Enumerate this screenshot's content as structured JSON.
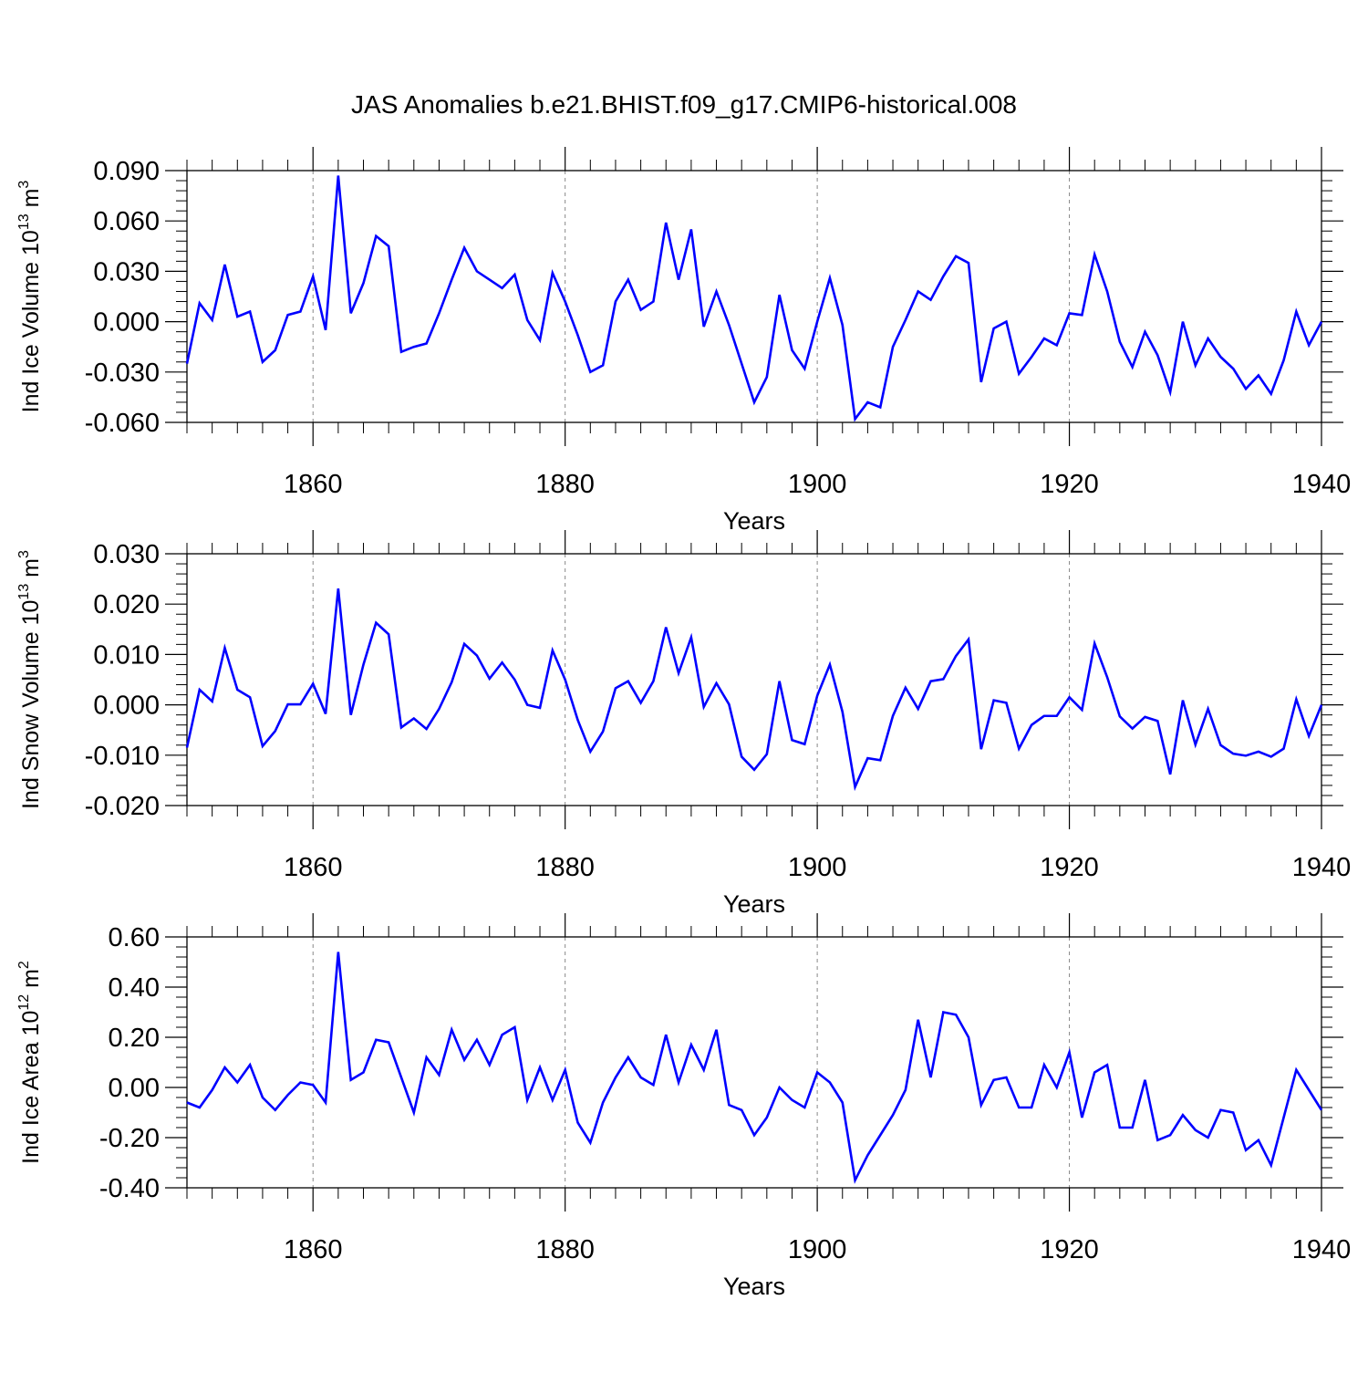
{
  "title": "JAS Anomalies b.e21.BHIST.f09_g17.CMIP6-historical.008",
  "colors": {
    "line": "#0000ff",
    "axis": "#000000",
    "grid": "#888888"
  },
  "chart_data": [
    {
      "type": "line",
      "ylabel": {
        "main": "Ind Ice Volume 10",
        "exp": "13",
        "unit": " m",
        "unit_exp": "3"
      },
      "xlabel": "Years",
      "xlim": [
        1850,
        1940
      ],
      "ylim": [
        -0.06,
        0.09
      ],
      "yticks": [
        -0.06,
        -0.03,
        0.0,
        0.03,
        0.06,
        0.09
      ],
      "ytick_labels": [
        "-0.060",
        "-0.030",
        "0.000",
        "0.030",
        "0.060",
        "0.090"
      ],
      "xticks": [
        1860,
        1880,
        1900,
        1920,
        1940
      ],
      "xtick_labels": [
        "1860",
        "1880",
        "1900",
        "1920",
        "1940"
      ],
      "grid_x": [
        1860,
        1880,
        1900,
        1920
      ],
      "x_start": 1850,
      "series": [
        {
          "values": [
            -0.025,
            0.011,
            0.001,
            0.034,
            0.003,
            0.006,
            -0.024,
            -0.017,
            0.004,
            0.006,
            0.027,
            -0.005,
            0.087,
            0.005,
            0.023,
            0.051,
            0.045,
            -0.018,
            -0.015,
            -0.013,
            0.005,
            0.025,
            0.044,
            0.03,
            0.025,
            0.02,
            0.028,
            0.001,
            -0.011,
            0.029,
            0.012,
            -0.008,
            -0.03,
            -0.026,
            0.012,
            0.025,
            0.007,
            0.012,
            0.059,
            0.025,
            0.055,
            -0.003,
            0.018,
            -0.002,
            -0.025,
            -0.048,
            -0.033,
            0.016,
            -0.017,
            -0.028,
            0.0,
            0.026,
            -0.002,
            -0.058,
            -0.048,
            -0.051,
            -0.015,
            0.001,
            0.018,
            0.013,
            0.027,
            0.039,
            0.035,
            -0.036,
            -0.004,
            0.0,
            -0.031,
            -0.021,
            -0.01,
            -0.014,
            0.005,
            0.004,
            0.04,
            0.018,
            -0.012,
            -0.027,
            -0.006,
            -0.02,
            -0.042,
            0.0,
            -0.026,
            -0.01,
            -0.021,
            -0.028,
            -0.04,
            -0.032,
            -0.043,
            -0.023,
            0.006,
            -0.014,
            0.0
          ]
        }
      ]
    },
    {
      "type": "line",
      "ylabel": {
        "main": "Ind Snow Volume 10",
        "exp": "13",
        "unit": " m",
        "unit_exp": "3"
      },
      "xlabel": "Years",
      "xlim": [
        1850,
        1940
      ],
      "ylim": [
        -0.02,
        0.03
      ],
      "yticks": [
        -0.02,
        -0.01,
        0.0,
        0.01,
        0.02,
        0.03
      ],
      "ytick_labels": [
        "-0.020",
        "-0.010",
        "0.000",
        "0.010",
        "0.020",
        "0.030"
      ],
      "xticks": [
        1860,
        1880,
        1900,
        1920,
        1940
      ],
      "xtick_labels": [
        "1860",
        "1880",
        "1900",
        "1920",
        "1940"
      ],
      "grid_x": [
        1860,
        1880,
        1900,
        1920
      ],
      "x_start": 1850,
      "series": [
        {
          "values": [
            -0.0085,
            0.003,
            0.0007,
            0.0113,
            0.003,
            0.0015,
            -0.0082,
            -0.0052,
            0.0001,
            0.0001,
            0.0042,
            -0.0018,
            0.0231,
            -0.002,
            0.008,
            0.0163,
            0.014,
            -0.0045,
            -0.0027,
            -0.0048,
            -0.0008,
            0.0045,
            0.0121,
            0.0098,
            0.0052,
            0.0084,
            0.005,
            0.0,
            -0.0006,
            0.0108,
            0.005,
            -0.003,
            -0.0093,
            -0.0053,
            0.0033,
            0.0047,
            0.0004,
            0.0047,
            0.0154,
            0.0063,
            0.0134,
            -0.0004,
            0.0043,
            0.0001,
            -0.0103,
            -0.0129,
            -0.0098,
            0.0047,
            -0.007,
            -0.0078,
            0.0018,
            0.008,
            -0.0014,
            -0.0163,
            -0.0106,
            -0.011,
            -0.0022,
            0.0034,
            -0.0008,
            0.0047,
            0.0051,
            0.0097,
            0.013,
            -0.0088,
            0.0009,
            0.0004,
            -0.0087,
            -0.004,
            -0.0022,
            -0.0022,
            0.0015,
            -0.001,
            0.0122,
            0.0055,
            -0.0023,
            -0.0047,
            -0.0024,
            -0.0032,
            -0.0138,
            0.0009,
            -0.0079,
            -0.0008,
            -0.008,
            -0.0097,
            -0.0101,
            -0.0093,
            -0.0103,
            -0.0087,
            0.0011,
            -0.0062,
            0.0
          ]
        }
      ]
    },
    {
      "type": "line",
      "ylabel": {
        "main": "Ind Ice Area 10",
        "exp": "12",
        "unit": " m",
        "unit_exp": "2"
      },
      "xlabel": "Years",
      "xlim": [
        1850,
        1940
      ],
      "ylim": [
        -0.4,
        0.6
      ],
      "yticks": [
        -0.4,
        -0.2,
        0.0,
        0.2,
        0.4,
        0.6
      ],
      "ytick_labels": [
        "-0.40",
        "-0.20",
        "0.00",
        "0.20",
        "0.40",
        "0.60"
      ],
      "xticks": [
        1860,
        1880,
        1900,
        1920,
        1940
      ],
      "xtick_labels": [
        "1860",
        "1880",
        "1900",
        "1920",
        "1940"
      ],
      "grid_x": [
        1860,
        1880,
        1900,
        1920
      ],
      "x_start": 1850,
      "series": [
        {
          "values": [
            -0.06,
            -0.08,
            -0.01,
            0.08,
            0.02,
            0.09,
            -0.04,
            -0.09,
            -0.03,
            0.02,
            0.01,
            -0.06,
            0.54,
            0.03,
            0.06,
            0.19,
            0.18,
            0.04,
            -0.1,
            0.12,
            0.05,
            0.23,
            0.11,
            0.19,
            0.09,
            0.21,
            0.24,
            -0.05,
            0.08,
            -0.05,
            0.07,
            -0.14,
            -0.22,
            -0.06,
            0.04,
            0.12,
            0.04,
            0.01,
            0.21,
            0.02,
            0.17,
            0.07,
            0.23,
            -0.07,
            -0.09,
            -0.19,
            -0.12,
            0.0,
            -0.05,
            -0.08,
            0.06,
            0.02,
            -0.06,
            -0.37,
            -0.27,
            -0.19,
            -0.11,
            -0.01,
            0.27,
            0.04,
            0.3,
            0.29,
            0.2,
            -0.07,
            0.03,
            0.04,
            -0.08,
            -0.08,
            0.09,
            0.0,
            0.14,
            -0.12,
            0.06,
            0.09,
            -0.16,
            -0.16,
            0.03,
            -0.21,
            -0.19,
            -0.11,
            -0.17,
            -0.2,
            -0.09,
            -0.1,
            -0.25,
            -0.21,
            -0.31,
            -0.12,
            0.07,
            -0.01,
            -0.09
          ]
        }
      ]
    }
  ]
}
